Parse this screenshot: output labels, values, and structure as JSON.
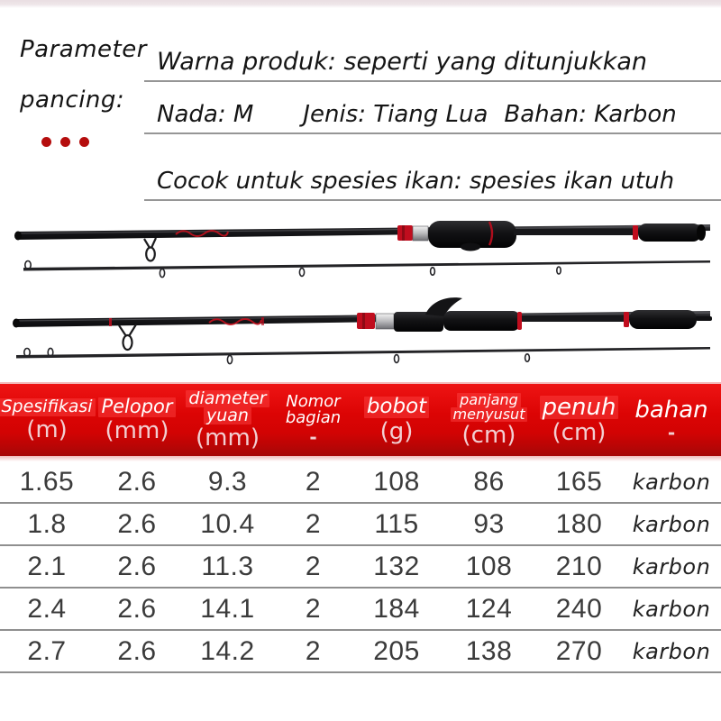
{
  "intro": {
    "title_line1": "Parameter",
    "title_line2": "pancing:",
    "row1": "Warna produk: seperti yang ditunjukkan",
    "row2_tone": "Nada: M",
    "row2_type": "Jenis: Tiang Lua",
    "row2_material": "Bahan: Karbon",
    "row3": "Cocok untuk spesies ikan: spesies ikan utuh"
  },
  "images": {
    "rod1": "two-piece-spinning-rod-photo",
    "rod2": "two-piece-casting-rod-photo"
  },
  "colors": {
    "header_red": "#dc0404",
    "accent_red": "#c00d1e",
    "dot_red": "#b50d0d",
    "separator_gray": "#8f8f8f",
    "top_strip_pink": "#e9dee2"
  },
  "table": {
    "columns": [
      {
        "label": "Spesifikasi",
        "unit": "(m)"
      },
      {
        "label": "Pelopor",
        "unit": "(mm)"
      },
      {
        "label": "diameter yuan",
        "label_lines": [
          "diameter",
          "yuan"
        ],
        "unit": "(mm)"
      },
      {
        "label": "Nomor bagian",
        "label_lines": [
          "Nomor",
          "bagian"
        ],
        "unit": "-"
      },
      {
        "label": "bobot",
        "unit": "(g)"
      },
      {
        "label": "panjang menyusut",
        "label_lines": [
          "panjang",
          "menyusut"
        ],
        "unit": "(cm)"
      },
      {
        "label": "penuh",
        "unit": "(cm)"
      },
      {
        "label": "bahan",
        "unit": "-"
      }
    ],
    "rows": [
      [
        "1.65",
        "2.6",
        "9.3",
        "2",
        "108",
        "86",
        "165",
        "karbon"
      ],
      [
        "1.8",
        "2.6",
        "10.4",
        "2",
        "115",
        "93",
        "180",
        "karbon"
      ],
      [
        "2.1",
        "2.6",
        "11.3",
        "2",
        "132",
        "108",
        "210",
        "karbon"
      ],
      [
        "2.4",
        "2.6",
        "14.1",
        "2",
        "184",
        "124",
        "240",
        "karbon"
      ],
      [
        "2.7",
        "2.6",
        "14.2",
        "2",
        "205",
        "138",
        "270",
        "karbon"
      ]
    ]
  }
}
